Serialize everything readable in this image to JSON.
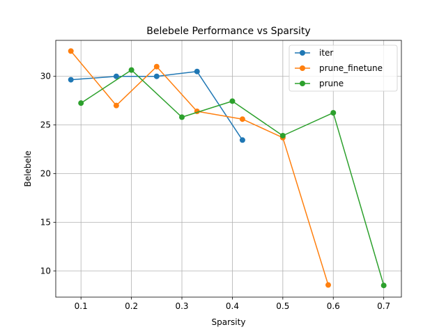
{
  "chart_data": {
    "type": "line",
    "title": "Belebele Performance vs Sparsity",
    "xlabel": "Sparsity",
    "ylabel": "Belebele",
    "xlim": [
      0.05,
      0.735
    ],
    "ylim": [
      7.3,
      33.7
    ],
    "xticks": [
      0.1,
      0.2,
      0.3,
      0.4,
      0.5,
      0.6,
      0.7
    ],
    "xtick_labels": [
      "0.1",
      "0.2",
      "0.3",
      "0.4",
      "0.5",
      "0.6",
      "0.7"
    ],
    "yticks": [
      10,
      15,
      20,
      25,
      30
    ],
    "ytick_labels": [
      "10",
      "15",
      "20",
      "25",
      "30"
    ],
    "grid": true,
    "legend_position": "top-right",
    "series": [
      {
        "name": "iter",
        "color": "#1f77b4",
        "marker": "circle",
        "x": [
          0.08,
          0.17,
          0.25,
          0.33,
          0.42
        ],
        "y": [
          29.65,
          30.0,
          30.0,
          30.5,
          23.45
        ]
      },
      {
        "name": "prune_finetune",
        "color": "#ff7f0e",
        "marker": "circle",
        "x": [
          0.08,
          0.17,
          0.25,
          0.33,
          0.42,
          0.5,
          0.59
        ],
        "y": [
          32.6,
          27.0,
          31.0,
          26.4,
          25.6,
          23.7,
          8.55
        ]
      },
      {
        "name": "prune",
        "color": "#2ca02c",
        "marker": "circle",
        "x": [
          0.1,
          0.2,
          0.3,
          0.4,
          0.5,
          0.6,
          0.7
        ],
        "y": [
          27.25,
          30.65,
          25.8,
          27.45,
          23.9,
          26.25,
          8.5
        ]
      }
    ]
  }
}
